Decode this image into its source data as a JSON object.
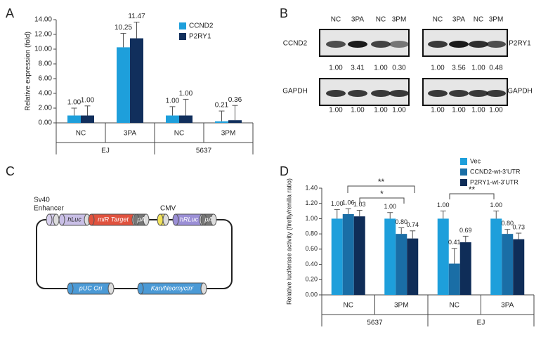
{
  "panel_letters": [
    "A",
    "B",
    "C",
    "D"
  ],
  "chart_data": [
    {
      "type": "bar",
      "ylabel": "Relative expression (fold)",
      "categories": [
        "NC",
        "3PA",
        "NC",
        "3PM"
      ],
      "group_labels": [
        "EJ",
        "5637"
      ],
      "ylim": [
        0,
        14
      ],
      "yticks": [
        {
          "value": 0,
          "label": "0.00"
        },
        {
          "value": 2,
          "label": "2.00"
        },
        {
          "value": 4,
          "label": "4.00"
        },
        {
          "value": 6,
          "label": "6.00"
        },
        {
          "value": 8,
          "label": "8.00"
        },
        {
          "value": 10,
          "label": "10.00"
        },
        {
          "value": 12,
          "label": "12.00"
        },
        {
          "value": 14,
          "label": "14.00"
        }
      ],
      "legend": "upper-right",
      "series": [
        {
          "name": "CCND2",
          "color": "#1e9fdb",
          "values": [
            1.0,
            10.25,
            1.0,
            0.21
          ],
          "value_labels": [
            "1.00",
            "10.25",
            "1.00",
            "0.21"
          ],
          "errors": [
            1.0,
            1.9,
            1.2,
            1.4
          ]
        },
        {
          "name": "P2RY1",
          "color": "#112f5c",
          "values": [
            1.0,
            11.47,
            1.0,
            0.36
          ],
          "value_labels": [
            "1.00",
            "11.47",
            "1.00",
            "0.36"
          ],
          "errors": [
            1.3,
            2.2,
            2.2,
            2.0
          ]
        }
      ]
    },
    {
      "type": "bar",
      "ylabel": "Relative luciferase activity (firefly/renilla ratio)",
      "categories": [
        "NC",
        "3PM",
        "NC",
        "3PA"
      ],
      "group_labels": [
        "5637",
        "EJ"
      ],
      "ylim": [
        0,
        1.4
      ],
      "yticks": [
        {
          "value": 0,
          "label": "0.00"
        },
        {
          "value": 0.2,
          "label": "0.20"
        },
        {
          "value": 0.4,
          "label": "0.40"
        },
        {
          "value": 0.6,
          "label": "0.60"
        },
        {
          "value": 0.8,
          "label": "0.80"
        },
        {
          "value": 1.0,
          "label": "1.00"
        },
        {
          "value": 1.2,
          "label": "1.20"
        },
        {
          "value": 1.4,
          "label": "1.40"
        }
      ],
      "legend": "upper-right",
      "annotations": [
        "**",
        "*",
        "**"
      ],
      "series": [
        {
          "name": "Vec",
          "color": "#1e9fdb",
          "values": [
            1.0,
            1.0,
            1.0,
            1.0
          ],
          "value_labels": [
            "1.00",
            "1.00",
            "1.00",
            "1.00"
          ],
          "errors": [
            0.12,
            0.08,
            0.1,
            0.1
          ]
        },
        {
          "name": "CCND2-wt-3’UTR",
          "color": "#1a6ea6",
          "values": [
            1.06,
            0.8,
            0.41,
            0.8
          ],
          "value_labels": [
            "1.06",
            "0.80",
            "0.41",
            "0.80"
          ],
          "errors": [
            0.07,
            0.08,
            0.2,
            0.06
          ]
        },
        {
          "name": "P2RY1-wt-3’UTR",
          "color": "#0f2d58",
          "values": [
            1.03,
            0.74,
            0.69,
            0.73
          ],
          "value_labels": [
            "1.03",
            "0.74",
            "0.69",
            "0.73"
          ],
          "errors": [
            0.08,
            0.1,
            0.08,
            0.08
          ]
        }
      ]
    }
  ],
  "blot": {
    "lanes": [
      "NC",
      "3PA",
      "NC",
      "3PM"
    ],
    "panels": [
      {
        "target": "CCND2",
        "target_values": [
          "1.00",
          "3.41",
          "1.00",
          "0.30"
        ],
        "control": "GAPDH",
        "control_values": [
          "1.00",
          "1.00",
          "1.00",
          "1.00"
        ]
      },
      {
        "target": "P2RY1",
        "target_values": [
          "1.00",
          "3.56",
          "1.00",
          "0.48"
        ],
        "control": "GAPDH",
        "control_values": [
          "1.00",
          "1.00",
          "1.00",
          "1.00"
        ]
      }
    ]
  },
  "plasmid": {
    "promoter_labels": [
      "Sv40",
      "Enhancer",
      "CMV"
    ],
    "elements": [
      "hLuc",
      "miR Target",
      "pA",
      "hRLuc",
      "pA",
      "pUC Ori",
      "Kan/Neomycinʳ"
    ]
  }
}
